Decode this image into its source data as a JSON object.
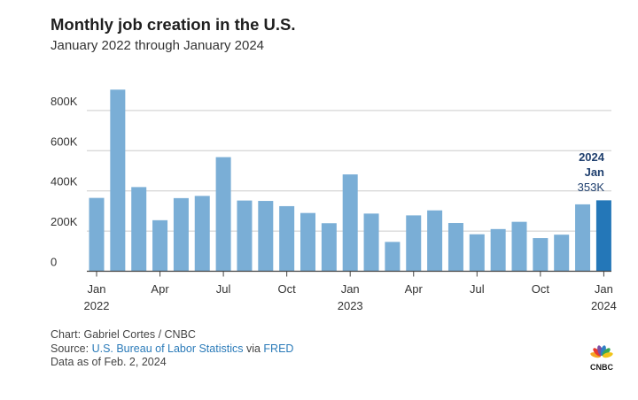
{
  "title": "Monthly job creation in the U.S.",
  "subtitle": "January 2022 through January 2024",
  "chart_data": {
    "type": "bar",
    "categories": [
      "Jan 2022",
      "Feb 2022",
      "Mar 2022",
      "Apr 2022",
      "May 2022",
      "Jun 2022",
      "Jul 2022",
      "Aug 2022",
      "Sep 2022",
      "Oct 2022",
      "Nov 2022",
      "Dec 2022",
      "Jan 2023",
      "Feb 2023",
      "Mar 2023",
      "Apr 2023",
      "May 2023",
      "Jun 2023",
      "Jul 2023",
      "Aug 2023",
      "Sep 2023",
      "Oct 2023",
      "Nov 2023",
      "Dec 2023",
      "Jan 2024"
    ],
    "values": [
      365000,
      904000,
      419000,
      254000,
      364000,
      375000,
      568000,
      352000,
      350000,
      324000,
      290000,
      239000,
      482000,
      287000,
      146000,
      278000,
      303000,
      240000,
      184000,
      210000,
      246000,
      165000,
      182000,
      333000,
      353000
    ],
    "tick_labels": [
      {
        "index": 0,
        "month": "Jan",
        "year": "2022"
      },
      {
        "index": 3,
        "month": "Apr",
        "year": ""
      },
      {
        "index": 6,
        "month": "Jul",
        "year": ""
      },
      {
        "index": 9,
        "month": "Oct",
        "year": ""
      },
      {
        "index": 12,
        "month": "Jan",
        "year": "2023"
      },
      {
        "index": 15,
        "month": "Apr",
        "year": ""
      },
      {
        "index": 18,
        "month": "Jul",
        "year": ""
      },
      {
        "index": 21,
        "month": "Oct",
        "year": ""
      },
      {
        "index": 24,
        "month": "Jan",
        "year": "2024"
      }
    ],
    "y_ticks": [
      {
        "value": 0,
        "label": "0"
      },
      {
        "value": 200000,
        "label": "200K"
      },
      {
        "value": 400000,
        "label": "400K"
      },
      {
        "value": 600000,
        "label": "600K"
      },
      {
        "value": 800000,
        "label": "800K"
      }
    ],
    "ylim": [
      0,
      900000
    ],
    "grid": true,
    "highlight": {
      "index": 24,
      "label_year": "2024",
      "label_month": "Jan",
      "value_label": "353K"
    },
    "colors": {
      "bar": "#7aaed6",
      "highlight_bar": "#2477b8",
      "highlight_text": "#1f3f6e",
      "grid": "#cccccc",
      "axis": "#444444",
      "tick_text": "#333333"
    }
  },
  "footer": {
    "credit": "Chart: Gabriel Cortes / CNBC",
    "source_prefix": "Source: ",
    "source_link": "U.S. Bureau of Labor Statistics",
    "source_via": " via ",
    "source_link2": "FRED",
    "date_note": "Data as of Feb. 2, 2024"
  },
  "logo": {
    "text": "CNBC",
    "icon": "peacock-icon",
    "colors": [
      "#f5a623",
      "#e8392f",
      "#7b4ea3",
      "#2f7fc4",
      "#3aa655",
      "#f0c419"
    ]
  }
}
